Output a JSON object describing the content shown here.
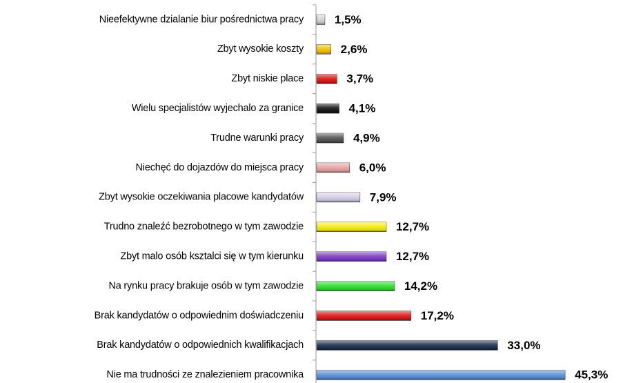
{
  "chart_data": {
    "type": "bar",
    "orientation": "horizontal",
    "categories": [
      "Nieefektywne dzialanie biur pośrednictwa pracy",
      "Zbyt wysokie koszty",
      "Zbyt niskie place",
      "Wielu specjalistów wyjechalo za granice",
      "Trudne warunki pracy",
      "Niechęć do dojazdów do miejsca pracy",
      "Zbyt wysokie oczekiwania placowe kandydatów",
      "Trudno znaleźć bezrobotnego w tym zawodzie",
      "Zbyt malo osób ksztalci się w tym kierunku",
      "Na rynku pracy brakuje osób w tym zawodzie",
      "Brak kandydatów o odpowiednim doświadczeniu",
      "Brak kandydatów o odpowiednich kwalifikacjach",
      "Nie ma trudności ze znalezieniem pracownika"
    ],
    "values": [
      1.5,
      2.6,
      3.7,
      4.1,
      4.9,
      6.0,
      7.9,
      12.7,
      12.7,
      14.2,
      17.2,
      33.0,
      45.3
    ],
    "value_labels": [
      "1,5%",
      "2,6%",
      "3,7%",
      "4,1%",
      "4,9%",
      "6,0%",
      "7,9%",
      "12,7%",
      "12,7%",
      "14,2%",
      "17,2%",
      "33,0%",
      "45,3%"
    ],
    "colors": [
      "#d4d4d4",
      "#f2c200",
      "#e01414",
      "#141414",
      "#555555",
      "#e8a4a4",
      "#d6cfe6",
      "#f6ee10",
      "#7f3fbf",
      "#2ee02e",
      "#de1818",
      "#1e2f4e",
      "#5a8fd8"
    ]
  }
}
